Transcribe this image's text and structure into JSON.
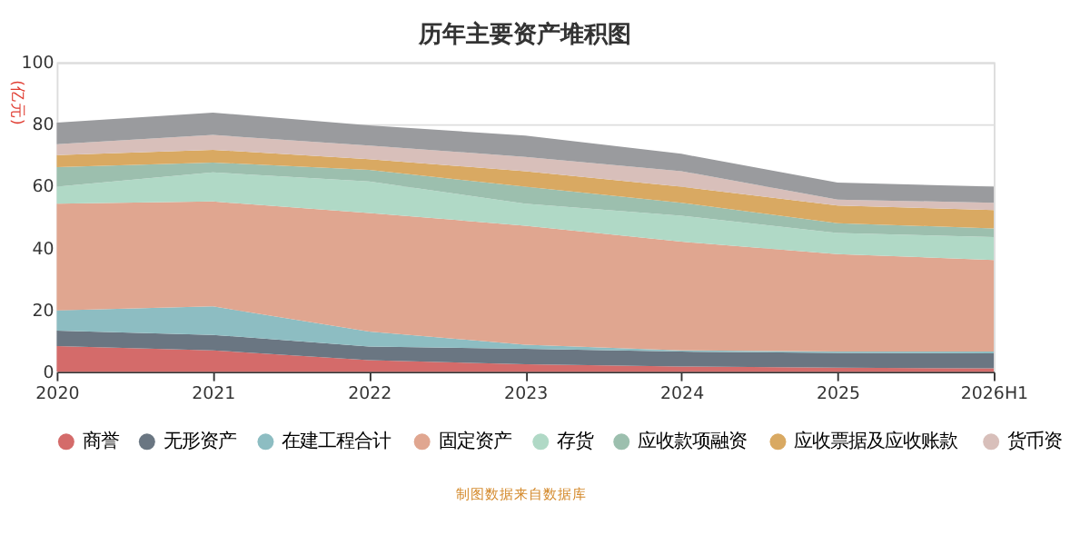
{
  "chart_data": {
    "type": "area",
    "stacked": true,
    "title": "历年主要资产堆积图",
    "ylabel": "(亿元)",
    "categories": [
      "2020",
      "2021",
      "2022",
      "2023",
      "2024",
      "2025",
      "2026H1"
    ],
    "ylim": [
      0,
      100
    ],
    "yticks": [
      0,
      20,
      40,
      60,
      80,
      100
    ],
    "grid": "y",
    "legend": "bottom",
    "annotations": [
      "制图数据来自数据库"
    ],
    "series": [
      {
        "name": "商誉",
        "color": "#d46b6a",
        "values": [
          8.3,
          6.9,
          3.7,
          2.4,
          1.7,
          1.3,
          1.1
        ]
      },
      {
        "name": "无形资产",
        "color": "#6a7682",
        "values": [
          5.0,
          5.0,
          4.4,
          5.0,
          4.8,
          4.8,
          4.8
        ]
      },
      {
        "name": "在建工程合计",
        "color": "#8dbdc2",
        "values": [
          6.5,
          9.2,
          4.9,
          1.3,
          0.4,
          0.4,
          0.6
        ]
      },
      {
        "name": "固定资产",
        "color": "#e0a690",
        "values": [
          34.5,
          33.9,
          38.3,
          38.5,
          35.1,
          31.5,
          29.6
        ]
      },
      {
        "name": "存货",
        "color": "#b0d9c6",
        "values": [
          5.5,
          9.4,
          10.2,
          7.1,
          8.4,
          6.8,
          7.4
        ]
      },
      {
        "name": "应收款项融资",
        "color": "#9cbfae",
        "values": [
          6.3,
          3.2,
          3.7,
          5.5,
          4.2,
          3.2,
          2.8
        ]
      },
      {
        "name": "应收票据及应收账款",
        "color": "#d9a962",
        "values": [
          3.9,
          4.1,
          3.5,
          5.0,
          5.2,
          5.7,
          5.9
        ]
      },
      {
        "name": "货币资",
        "color": "#d8bfba",
        "values": [
          3.5,
          4.8,
          4.4,
          4.6,
          5.0,
          1.9,
          2.4
        ]
      },
      {
        "color": "#9a9b9e",
        "values": [
          7.0,
          7.2,
          6.5,
          6.9,
          5.6,
          5.5,
          5.2
        ]
      }
    ]
  }
}
